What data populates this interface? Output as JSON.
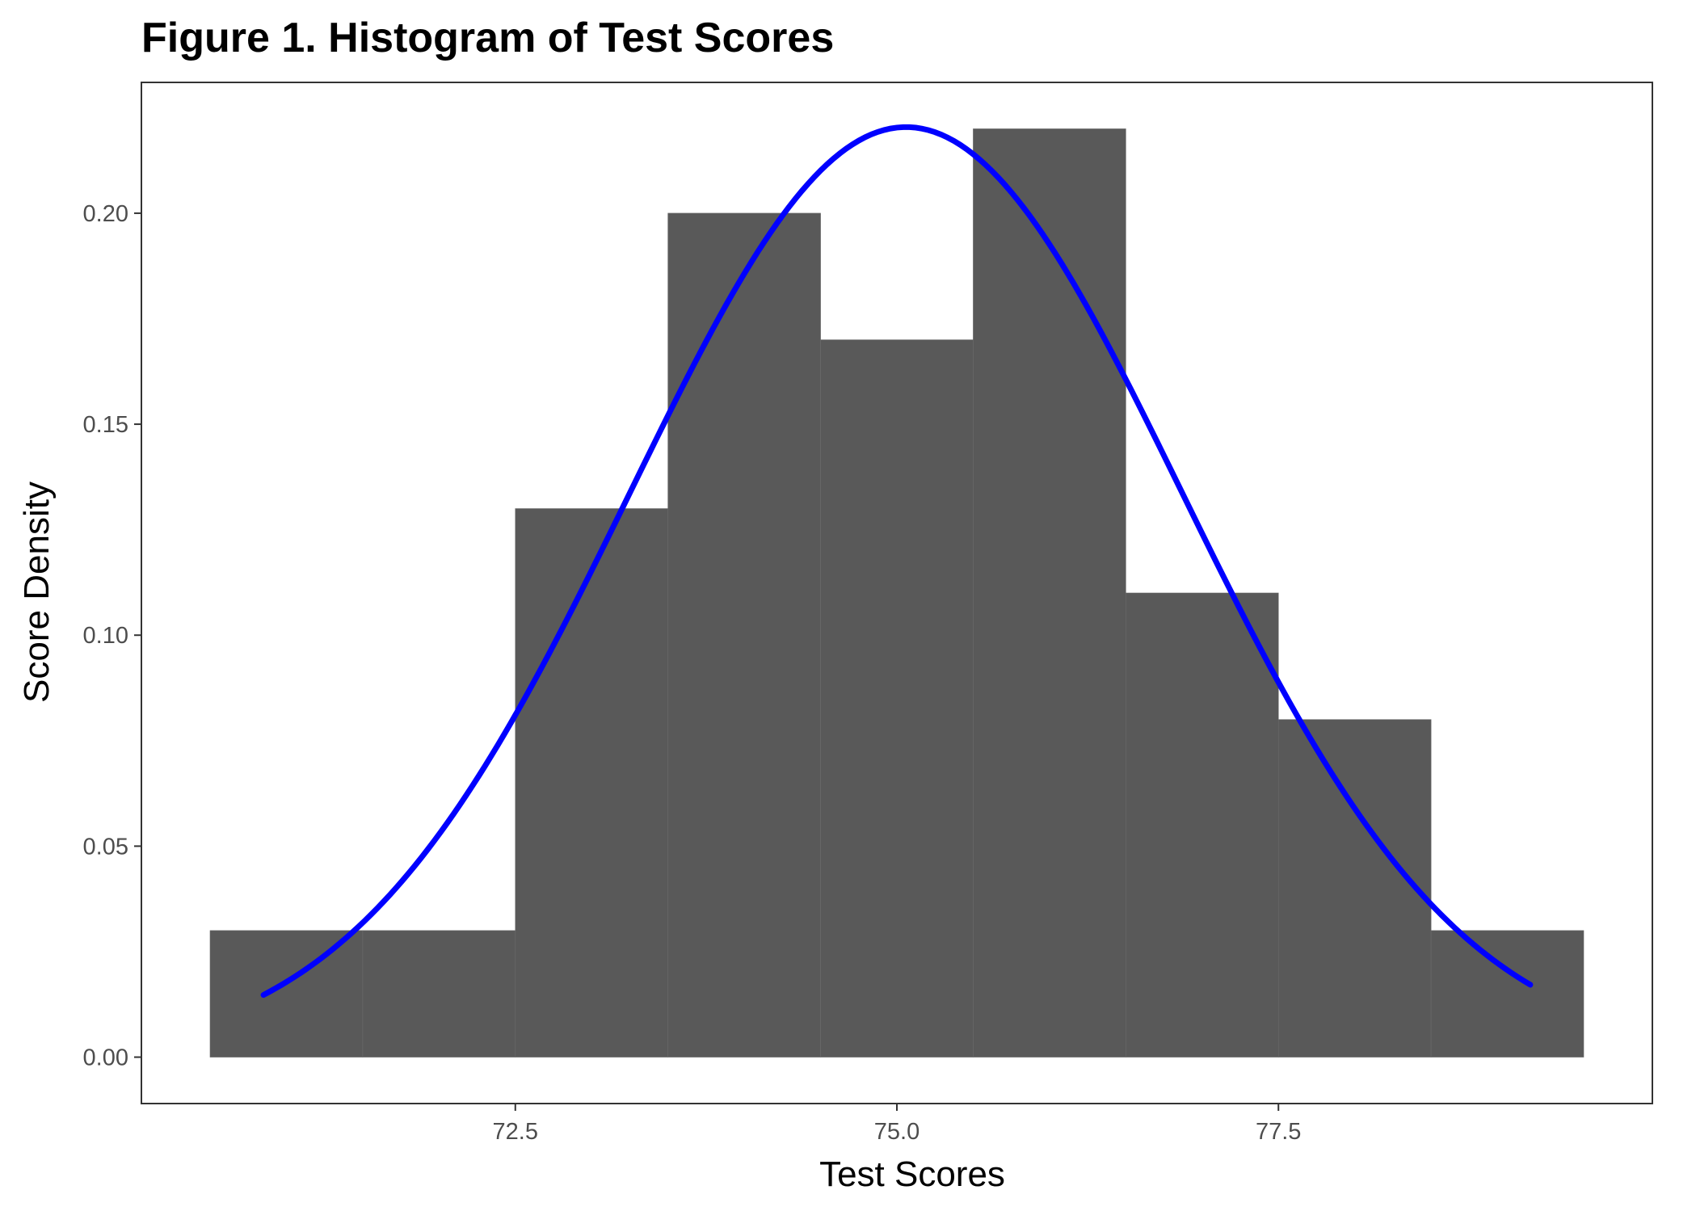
{
  "chart_data": {
    "type": "bar",
    "title": "Figure 1. Histogram of Test Scores",
    "xlabel": "Test Scores",
    "ylabel": "Score Density",
    "bin_width": 1,
    "bins": [
      {
        "x_start": 70.5,
        "x_end": 71.5,
        "density": 0.03
      },
      {
        "x_start": 71.5,
        "x_end": 72.5,
        "density": 0.03
      },
      {
        "x_start": 72.5,
        "x_end": 73.5,
        "density": 0.13
      },
      {
        "x_start": 73.5,
        "x_end": 74.5,
        "density": 0.2
      },
      {
        "x_start": 74.5,
        "x_end": 75.5,
        "density": 0.17
      },
      {
        "x_start": 75.5,
        "x_end": 76.5,
        "density": 0.22
      },
      {
        "x_start": 76.5,
        "x_end": 77.5,
        "density": 0.11
      },
      {
        "x_start": 77.5,
        "x_end": 78.5,
        "density": 0.08
      },
      {
        "x_start": 78.5,
        "x_end": 79.5,
        "density": 0.03
      }
    ],
    "density_curve": {
      "type": "normal",
      "mean": 75.06,
      "sd": 1.81,
      "x_range": [
        70.85,
        79.15
      ],
      "color": "#0000ff"
    },
    "x_ticks": [
      "72.5",
      "75.0",
      "77.5"
    ],
    "y_ticks": [
      "0.00",
      "0.05",
      "0.10",
      "0.15",
      "0.20"
    ],
    "xlim": [
      70.05,
      79.95
    ],
    "ylim": [
      -0.011,
      0.231
    ],
    "grid": false,
    "legend": "none",
    "bar_color": "#595959"
  }
}
